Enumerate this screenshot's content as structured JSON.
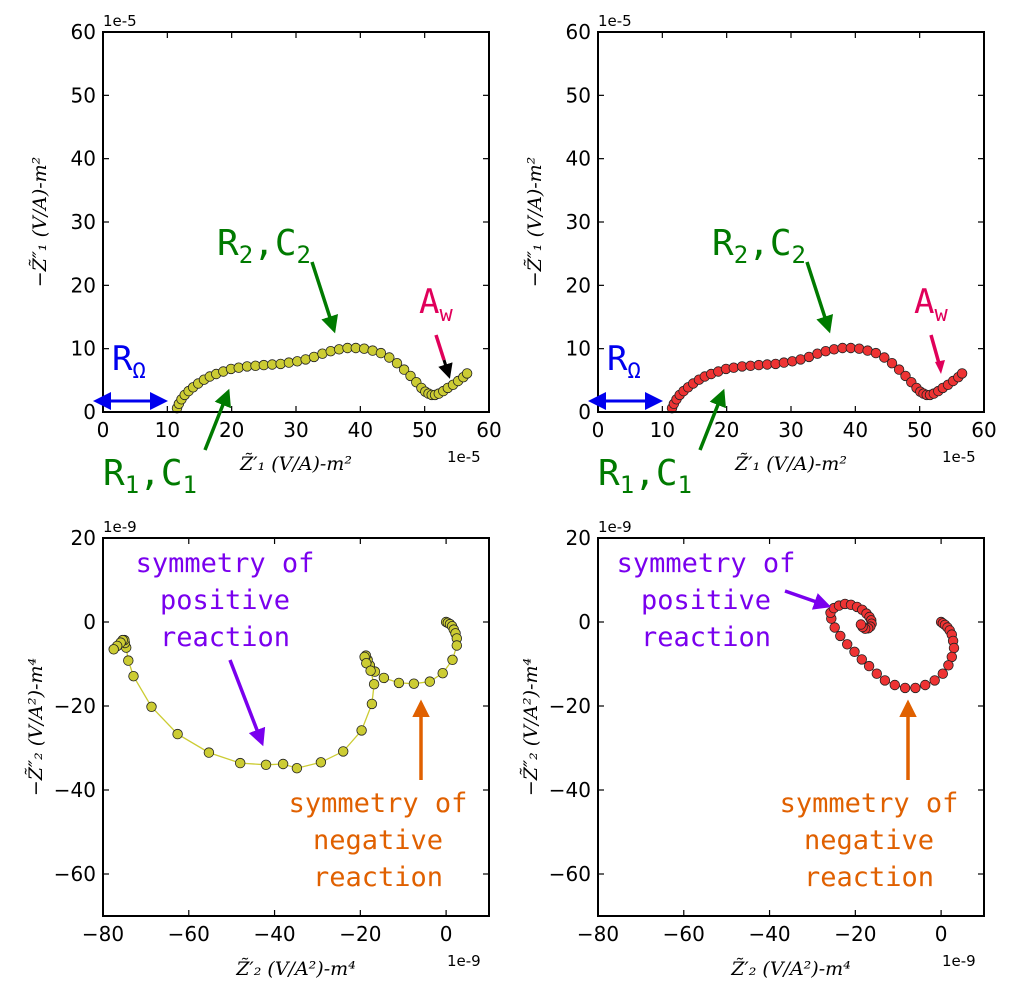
{
  "chart_data": [
    {
      "type": "scatter",
      "panel": "top-left",
      "multiplier": "1e-5",
      "xlabel": "Z̃′₁ (V/A)-m²",
      "ylabel": "−Z̃″₁ (V/A)-m²",
      "xlim": [
        0,
        60
      ],
      "ylim": [
        0,
        60
      ],
      "xticks": [
        0,
        10,
        20,
        30,
        40,
        50,
        60
      ],
      "yticks": [
        0,
        10,
        20,
        30,
        40,
        50,
        60
      ],
      "marker_color": "#cccc33",
      "annotation_colors": {
        "resistance": "#0000ee",
        "circuit": "#007a00",
        "warburg": "#e0005a"
      },
      "annotations": [
        {
          "label": "RΩ"
        },
        {
          "label": "R₂,C₂"
        },
        {
          "label": "R₁,C₁"
        },
        {
          "label": "Aw"
        }
      ],
      "series": [
        {
          "values": [
            [
              11.5,
              0.6
            ],
            [
              11.8,
              1.3
            ],
            [
              12.2,
              2.0
            ],
            [
              12.7,
              2.7
            ],
            [
              13.3,
              3.3
            ],
            [
              14.0,
              3.9
            ],
            [
              14.8,
              4.5
            ],
            [
              15.7,
              5.1
            ],
            [
              16.6,
              5.6
            ],
            [
              17.6,
              6.0
            ],
            [
              18.7,
              6.4
            ],
            [
              19.9,
              6.8
            ],
            [
              21.1,
              7.0
            ],
            [
              22.4,
              7.2
            ],
            [
              23.7,
              7.3
            ],
            [
              25.0,
              7.4
            ],
            [
              26.3,
              7.5
            ],
            [
              27.6,
              7.6
            ],
            [
              28.9,
              7.8
            ],
            [
              30.2,
              8.0
            ],
            [
              31.5,
              8.3
            ],
            [
              32.8,
              8.7
            ],
            [
              34.1,
              9.2
            ],
            [
              35.4,
              9.6
            ],
            [
              36.7,
              9.9
            ],
            [
              38.0,
              10.1
            ],
            [
              39.3,
              10.1
            ],
            [
              40.6,
              10.0
            ],
            [
              41.9,
              9.7
            ],
            [
              43.2,
              9.3
            ],
            [
              44.5,
              8.6
            ],
            [
              45.7,
              7.7
            ],
            [
              46.8,
              6.7
            ],
            [
              47.8,
              5.7
            ],
            [
              48.7,
              4.7
            ],
            [
              49.5,
              3.8
            ],
            [
              50.1,
              3.2
            ],
            [
              50.6,
              2.9
            ],
            [
              51.1,
              2.7
            ],
            [
              51.6,
              2.7
            ],
            [
              52.2,
              2.9
            ],
            [
              52.9,
              3.3
            ],
            [
              53.6,
              3.8
            ],
            [
              54.4,
              4.3
            ],
            [
              55.2,
              4.9
            ],
            [
              56.0,
              5.5
            ],
            [
              56.6,
              6.1
            ]
          ]
        }
      ]
    },
    {
      "type": "scatter",
      "panel": "top-right",
      "multiplier": "1e-5",
      "xlabel": "Z̃′₁ (V/A)-m²",
      "ylabel": "−Z̃″₁ (V/A)-m²",
      "xlim": [
        0,
        60
      ],
      "ylim": [
        0,
        60
      ],
      "xticks": [
        0,
        10,
        20,
        30,
        40,
        50,
        60
      ],
      "yticks": [
        0,
        10,
        20,
        30,
        40,
        50,
        60
      ],
      "marker_color": "#ee3333",
      "annotation_colors": {
        "resistance": "#0000ee",
        "circuit": "#007a00",
        "warburg": "#e0005a"
      },
      "annotations": [
        {
          "label": "RΩ"
        },
        {
          "label": "R₂,C₂"
        },
        {
          "label": "R₁,C₁"
        },
        {
          "label": "Aw"
        }
      ],
      "series": [
        {
          "values": [
            [
              11.5,
              0.6
            ],
            [
              11.8,
              1.3
            ],
            [
              12.2,
              2.0
            ],
            [
              12.7,
              2.7
            ],
            [
              13.3,
              3.3
            ],
            [
              14.0,
              3.9
            ],
            [
              14.8,
              4.5
            ],
            [
              15.7,
              5.1
            ],
            [
              16.6,
              5.6
            ],
            [
              17.6,
              6.0
            ],
            [
              18.7,
              6.4
            ],
            [
              19.9,
              6.8
            ],
            [
              21.1,
              7.0
            ],
            [
              22.4,
              7.2
            ],
            [
              23.7,
              7.3
            ],
            [
              25.0,
              7.4
            ],
            [
              26.3,
              7.5
            ],
            [
              27.6,
              7.6
            ],
            [
              28.9,
              7.8
            ],
            [
              30.2,
              8.0
            ],
            [
              31.5,
              8.3
            ],
            [
              32.8,
              8.7
            ],
            [
              34.1,
              9.2
            ],
            [
              35.4,
              9.6
            ],
            [
              36.7,
              9.9
            ],
            [
              38.0,
              10.1
            ],
            [
              39.3,
              10.1
            ],
            [
              40.6,
              10.0
            ],
            [
              41.9,
              9.7
            ],
            [
              43.2,
              9.3
            ],
            [
              44.5,
              8.6
            ],
            [
              45.7,
              7.7
            ],
            [
              46.8,
              6.7
            ],
            [
              47.8,
              5.7
            ],
            [
              48.7,
              4.7
            ],
            [
              49.5,
              3.8
            ],
            [
              50.1,
              3.2
            ],
            [
              50.6,
              2.9
            ],
            [
              51.1,
              2.7
            ],
            [
              51.6,
              2.7
            ],
            [
              52.2,
              2.9
            ],
            [
              52.9,
              3.3
            ],
            [
              53.6,
              3.8
            ],
            [
              54.4,
              4.3
            ],
            [
              55.2,
              4.9
            ],
            [
              56.0,
              5.5
            ],
            [
              56.6,
              6.1
            ]
          ]
        }
      ]
    },
    {
      "type": "line",
      "panel": "bottom-left",
      "multiplier": "1e-9",
      "xlabel": "Z̃′₂ (V/A²)-m⁴",
      "ylabel": "−Z̃″₂ (V/A²)-m⁴",
      "xlim": [
        -80,
        10
      ],
      "ylim": [
        -70,
        20
      ],
      "xticks": [
        -80,
        -60,
        -40,
        -20,
        0
      ],
      "yticks": [
        -60,
        -40,
        -20,
        0,
        20
      ],
      "marker_color": "#cccc33",
      "annotation_colors": {
        "positive": "#7a00ee",
        "negative": "#e06000"
      },
      "annotations": [
        {
          "label": "symmetry of\npositive\nreaction"
        },
        {
          "label": "symmetry of\nnegative\nreaction"
        }
      ],
      "series": [
        {
          "values": [
            [
              0.0,
              0.0
            ],
            [
              0.4,
              -0.2
            ],
            [
              0.9,
              -0.5
            ],
            [
              1.4,
              -1.0
            ],
            [
              1.8,
              -1.8
            ],
            [
              2.2,
              -2.7
            ],
            [
              2.5,
              -3.9
            ],
            [
              2.5,
              -5.6
            ],
            [
              1.5,
              -9.0
            ],
            [
              -0.8,
              -12.2
            ],
            [
              -3.8,
              -14.2
            ],
            [
              -7.5,
              -14.7
            ],
            [
              -11.0,
              -14.5
            ],
            [
              -14.5,
              -13.3
            ],
            [
              -16.6,
              -11.8
            ],
            [
              -17.8,
              -10.3
            ],
            [
              -18.3,
              -9.0
            ],
            [
              -18.7,
              -8.0
            ],
            [
              -19.0,
              -8.3
            ],
            [
              -18.6,
              -9.8
            ],
            [
              -17.6,
              -11.6
            ],
            [
              -16.8,
              -14.8
            ],
            [
              -17.3,
              -19.5
            ],
            [
              -19.7,
              -25.8
            ],
            [
              -24.0,
              -30.8
            ],
            [
              -29.2,
              -33.4
            ],
            [
              -34.8,
              -34.8
            ],
            [
              -38.0,
              -33.8
            ],
            [
              -42.0,
              -34.0
            ],
            [
              -48.0,
              -33.6
            ],
            [
              -55.3,
              -31.1
            ],
            [
              -62.6,
              -26.7
            ],
            [
              -68.7,
              -20.2
            ],
            [
              -72.9,
              -12.9
            ],
            [
              -74.1,
              -9.2
            ],
            [
              -74.6,
              -6.1
            ],
            [
              -74.9,
              -5.0
            ],
            [
              -75.0,
              -4.3
            ],
            [
              -75.4,
              -4.3
            ],
            [
              -75.9,
              -4.9
            ],
            [
              -76.7,
              -5.7
            ],
            [
              -77.5,
              -6.5
            ]
          ]
        }
      ]
    },
    {
      "type": "line",
      "panel": "bottom-right",
      "multiplier": "1e-9",
      "xlabel": "Z̃′₂ (V/A²)-m⁴",
      "ylabel": "−Z̃″₂ (V/A²)-m⁴",
      "xlim": [
        -80,
        10
      ],
      "ylim": [
        -70,
        20
      ],
      "xticks": [
        -80,
        -60,
        -40,
        -20,
        0
      ],
      "yticks": [
        -60,
        -40,
        -20,
        0,
        20
      ],
      "marker_color": "#ee3333",
      "annotation_colors": {
        "positive": "#7a00ee",
        "negative": "#e06000"
      },
      "annotations": [
        {
          "label": "symmetry of\npositive\nreaction"
        },
        {
          "label": "symmetry of\nnegative\nreaction"
        }
      ],
      "series": [
        {
          "values": [
            [
              0.0,
              0.0
            ],
            [
              0.4,
              -0.3
            ],
            [
              0.9,
              -0.7
            ],
            [
              1.5,
              -1.3
            ],
            [
              2.0,
              -2.0
            ],
            [
              2.5,
              -3.0
            ],
            [
              2.8,
              -4.5
            ],
            [
              3.0,
              -6.2
            ],
            [
              2.5,
              -8.3
            ],
            [
              1.7,
              -10.3
            ],
            [
              0.4,
              -12.3
            ],
            [
              -1.5,
              -13.9
            ],
            [
              -3.7,
              -15.0
            ],
            [
              -6.0,
              -15.7
            ],
            [
              -8.4,
              -15.7
            ],
            [
              -10.8,
              -15.0
            ],
            [
              -13.1,
              -13.9
            ],
            [
              -15.0,
              -12.3
            ],
            [
              -16.8,
              -10.5
            ],
            [
              -18.5,
              -8.9
            ],
            [
              -20.2,
              -7.1
            ],
            [
              -21.9,
              -5.3
            ],
            [
              -23.5,
              -3.3
            ],
            [
              -24.8,
              -1.3
            ],
            [
              -25.6,
              0.8
            ],
            [
              -25.8,
              2.2
            ],
            [
              -25.0,
              3.3
            ],
            [
              -23.8,
              3.9
            ],
            [
              -22.4,
              4.3
            ],
            [
              -21.0,
              4.1
            ],
            [
              -19.6,
              3.6
            ],
            [
              -18.4,
              2.9
            ],
            [
              -17.4,
              2.0
            ],
            [
              -16.7,
              1.2
            ],
            [
              -16.3,
              0.4
            ],
            [
              -16.2,
              -0.4
            ],
            [
              -16.5,
              -1.1
            ],
            [
              -17.0,
              -1.5
            ],
            [
              -17.7,
              -1.6
            ],
            [
              -18.3,
              -1.2
            ],
            [
              -18.7,
              -0.6
            ]
          ]
        }
      ]
    }
  ]
}
